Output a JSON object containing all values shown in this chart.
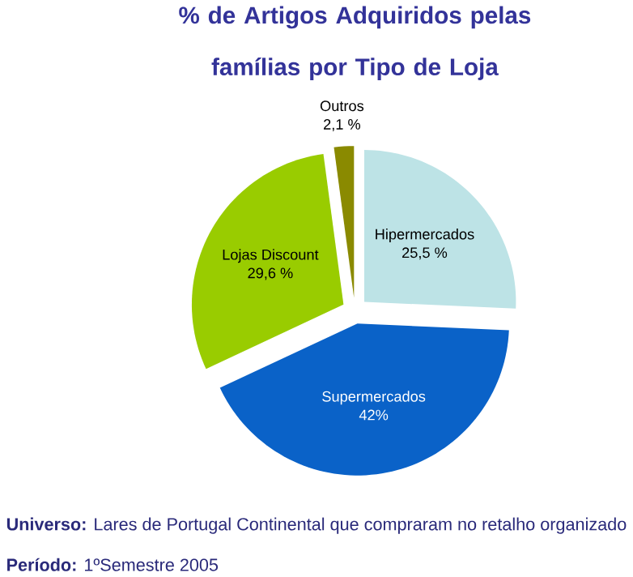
{
  "chart_data": {
    "type": "pie",
    "title": "% de Artigos Adquiridos pelas famílias por Tipo de Loja",
    "categories": [
      "Hipermercados",
      "Supermercados",
      "Lojas Discount",
      "Outros"
    ],
    "values": [
      25.5,
      42,
      29.6,
      2.1
    ],
    "value_labels": [
      "25,5 %",
      "42%",
      "29,6 %",
      "2,1 %"
    ],
    "colors": [
      "#bde3e6",
      "#0a62c8",
      "#99cc00",
      "#8a8a00"
    ],
    "annotations": [
      "**Universo:** Lares de Portugal Continental que compraram no retalho organizado",
      "**Período:** 1ºSemestre 2005"
    ]
  }
}
